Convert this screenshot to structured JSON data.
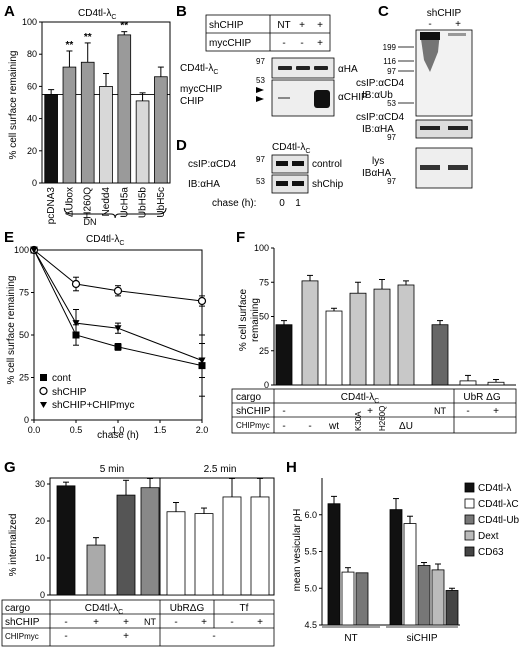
{
  "panels": {
    "A": {
      "letter": "A",
      "title": "CD4tl-λ",
      "title_sub": "C",
      "ylabel": "% cell surface remaining",
      "group_label": "DN"
    },
    "B": {
      "letter": "B",
      "row1": "shCHIP",
      "row2": "mycCHIP",
      "cols_row1": [
        "NT",
        "+",
        "+"
      ],
      "cols_row2": [
        "-",
        "-",
        "+"
      ],
      "blot1_label": "CD4tl-λ",
      "blot1_sub": "C",
      "blot1_ab": "αHA",
      "mw1": "97",
      "mw2": "53",
      "blot2_labels": [
        "mycCHIP",
        "CHIP"
      ],
      "blot2_ab": "αCHIP"
    },
    "C": {
      "letter": "C",
      "header": "shCHIP",
      "cols": [
        "-",
        "+"
      ],
      "mws_top": [
        "199",
        "116",
        "97",
        "53"
      ],
      "label_top": [
        "csIP:αCD4",
        "IB:αUb"
      ],
      "label_mid": [
        "csIP:αCD4",
        "IB:αHA"
      ],
      "mw_mid": "97",
      "label_bot": [
        "lys",
        "IBαHA"
      ],
      "mw_bot": "97"
    },
    "D": {
      "letter": "D",
      "header": "CD4tl-λ",
      "header_sub": "C",
      "labels": [
        "csIP:αCD4",
        "IB:αHA"
      ],
      "mws": [
        "97",
        "53"
      ],
      "blot_labels": [
        "control",
        "shChip"
      ],
      "chase_label": "chase (h):",
      "chase_vals": [
        "0",
        "1"
      ]
    },
    "E": {
      "letter": "E",
      "title": "CD4tl-λ",
      "title_sub": "C",
      "ylabel": "% cell surface remaining",
      "xlabel": "chase (h)",
      "legend": [
        "cont",
        "shCHIP",
        "shCHIP+CHIPmyc"
      ]
    },
    "F": {
      "letter": "F",
      "ylabel": [
        "% cell surface",
        "remaining"
      ],
      "table": {
        "row_labels": [
          "cargo",
          "shCHIP",
          "CHIPmyc"
        ],
        "cargo1": "CD4tl-λ",
        "cargo1_sub": "C",
        "cargo2": "UbR ΔG",
        "shchip_vals": [
          "-",
          "+",
          "NT",
          "-",
          "+"
        ],
        "chipmyc_vals": [
          "-",
          "-",
          "wt",
          "K30A",
          "H260Q",
          "ΔU"
        ]
      }
    },
    "G": {
      "letter": "G",
      "ylabel": "% internalized",
      "time1": "5 min",
      "time2": "2.5 min",
      "table": {
        "row_labels": [
          "cargo",
          "shCHIP",
          "CHIPmyc"
        ],
        "cargo1": "CD4tl-λ",
        "cargo1_sub": "C",
        "cargo2": "UbRΔG",
        "cargo3": "Tf",
        "shchip_vals": [
          "-",
          "+",
          "+",
          "NT",
          "-",
          "+",
          "-",
          "+"
        ],
        "chipmyc_vals": [
          "-",
          "+"
        ],
        "chipmyc_right": "-"
      }
    },
    "H": {
      "letter": "H",
      "ylabel": "mean vesicular pH",
      "groups": [
        "NT",
        "siCHIP"
      ],
      "legend": [
        "CD4tl-λ",
        "CD4tl-λC",
        "CD4tl-Ub",
        "Dext",
        "CD63"
      ]
    }
  },
  "chart_data": [
    {
      "panel": "A",
      "type": "bar",
      "categories": [
        "pcDNA3",
        "ΔUbox",
        "H260Q",
        "Nedd4",
        "UcH5a",
        "UbH5b",
        "UbH5c"
      ],
      "values": [
        55,
        72,
        75,
        60,
        92,
        51,
        66
      ],
      "errors": [
        3,
        10,
        12,
        8,
        2,
        5,
        6
      ],
      "ylim": [
        0,
        100
      ],
      "yticks": [
        0,
        20,
        40,
        60,
        80,
        100
      ],
      "colors": [
        "#111111",
        "#9a9a9a",
        "#9a9a9a",
        "#d8d8d8",
        "#9a9a9a",
        "#d8d8d8",
        "#9a9a9a"
      ],
      "significance": [
        "",
        "**",
        "**",
        "",
        "**",
        "",
        ""
      ],
      "reference_line": 55
    },
    {
      "panel": "E",
      "type": "line",
      "x": [
        0,
        0.5,
        1,
        2
      ],
      "xlim": [
        0,
        2.0
      ],
      "ylim": [
        0,
        100
      ],
      "yticks": [
        0,
        25,
        50,
        75,
        100
      ],
      "xticks": [
        "0.0",
        "0.5",
        "1.0",
        "1.5",
        "2.0"
      ],
      "series": [
        {
          "name": "cont",
          "values": [
            100,
            50,
            43,
            32
          ],
          "errors": [
            0,
            6,
            2,
            18
          ],
          "marker": "square"
        },
        {
          "name": "shCHIP",
          "values": [
            100,
            80,
            76,
            70
          ],
          "errors": [
            0,
            4,
            3,
            3
          ],
          "marker": "circle"
        },
        {
          "name": "shCHIP+CHIPmyc",
          "values": [
            100,
            57,
            54,
            35
          ],
          "errors": [
            0,
            8,
            3,
            10
          ],
          "marker": "triangle"
        }
      ]
    },
    {
      "panel": "F",
      "type": "bar",
      "values": [
        44,
        76,
        54,
        67,
        70,
        73,
        44,
        3,
        2
      ],
      "errors": [
        3,
        4,
        2,
        8,
        7,
        3,
        3,
        4,
        2
      ],
      "ylim": [
        0,
        100
      ],
      "yticks": [
        0,
        25,
        50,
        75,
        100
      ],
      "colors": [
        "#111111",
        "#c8c8c8",
        "#ffffff",
        "#c8c8c8",
        "#c8c8c8",
        "#c8c8c8",
        "#666666",
        "#ffffff",
        "#ffffff"
      ]
    },
    {
      "panel": "G-5min",
      "type": "bar",
      "values": [
        29.5,
        13.5,
        27,
        29
      ],
      "errors": [
        1,
        2,
        4,
        2.5
      ],
      "ylim": [
        0,
        30
      ],
      "yticks": [
        0,
        10,
        20,
        30
      ],
      "colors": [
        "#111111",
        "#aaaaaa",
        "#555555",
        "#888888"
      ]
    },
    {
      "panel": "G-2.5min",
      "type": "bar",
      "values": [
        22.5,
        22,
        26.5,
        26.5
      ],
      "errors": [
        2.5,
        1.5,
        5,
        5
      ],
      "ylim": [
        0,
        30
      ],
      "colors": [
        "#ffffff",
        "#ffffff",
        "#ffffff",
        "#ffffff"
      ]
    },
    {
      "panel": "H",
      "type": "bar",
      "categories": [
        "NT",
        "siCHIP"
      ],
      "ylim": [
        4.5,
        6.5
      ],
      "yticks": [
        4.5,
        5.0,
        5.5,
        6.0
      ],
      "series": [
        {
          "name": "CD4tl-λ",
          "values": [
            6.15,
            6.07
          ],
          "errors": [
            0.1,
            0.15
          ]
        },
        {
          "name": "CD4tl-λC",
          "values": [
            5.22,
            5.88
          ],
          "errors": [
            0.06,
            0.1
          ]
        },
        {
          "name": "CD4tl-Ub",
          "values": [
            5.21,
            5.31
          ],
          "errors": [
            0,
            0.04
          ]
        },
        {
          "name": "Dext",
          "values": [
            null,
            5.25
          ],
          "errors": [
            0,
            0.08
          ]
        },
        {
          "name": "CD63",
          "values": [
            null,
            4.97
          ],
          "errors": [
            0,
            0.03
          ]
        }
      ],
      "colors": [
        "#111111",
        "#ffffff",
        "#777777",
        "#bbbbbb",
        "#444444"
      ]
    }
  ]
}
